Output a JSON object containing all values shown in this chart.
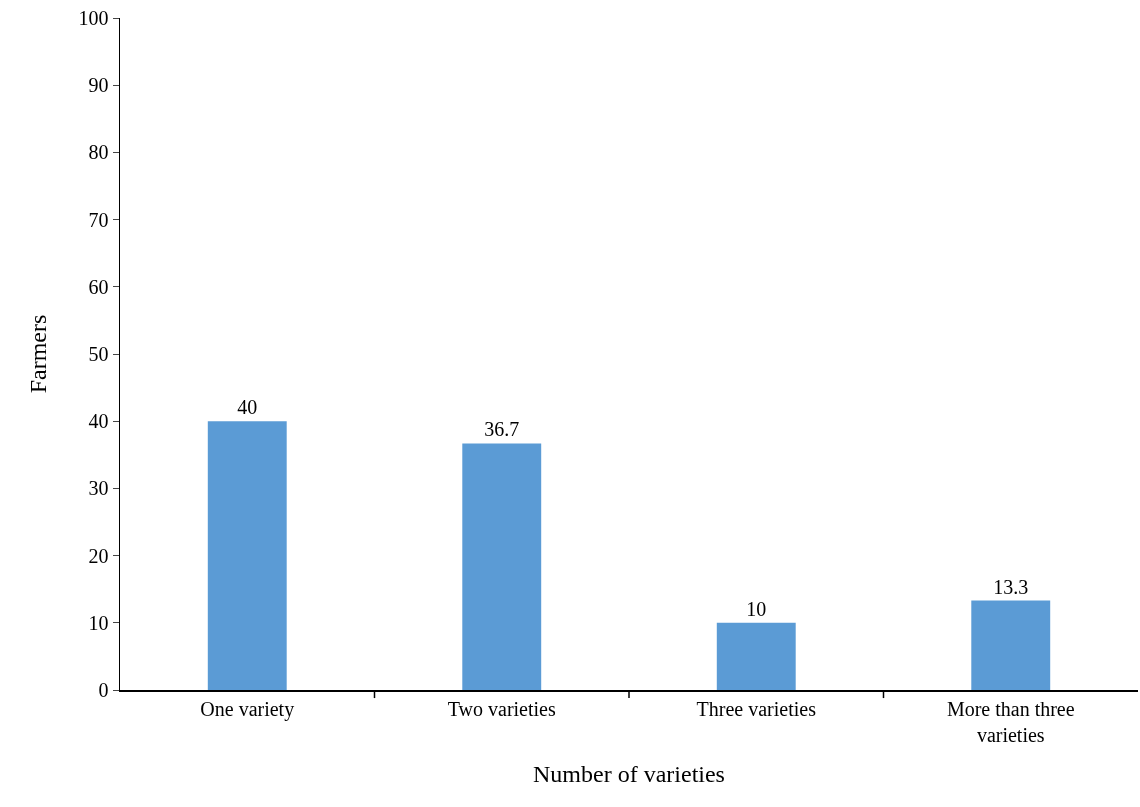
{
  "chart_data": {
    "type": "bar",
    "xlabel": "Number of varieties",
    "ylabel": "Farmers",
    "categories": [
      "One variety",
      "Two varieties",
      "Three varieties",
      "More than three varieties"
    ],
    "values": [
      40,
      36.7,
      10,
      13.3
    ],
    "color": "#5b9bd5",
    "ylim": [
      0,
      100
    ],
    "yticks": [
      0,
      10,
      20,
      30,
      40,
      50,
      60,
      70,
      80,
      90,
      100
    ],
    "grid": false,
    "legend": false,
    "data_labels": true
  }
}
